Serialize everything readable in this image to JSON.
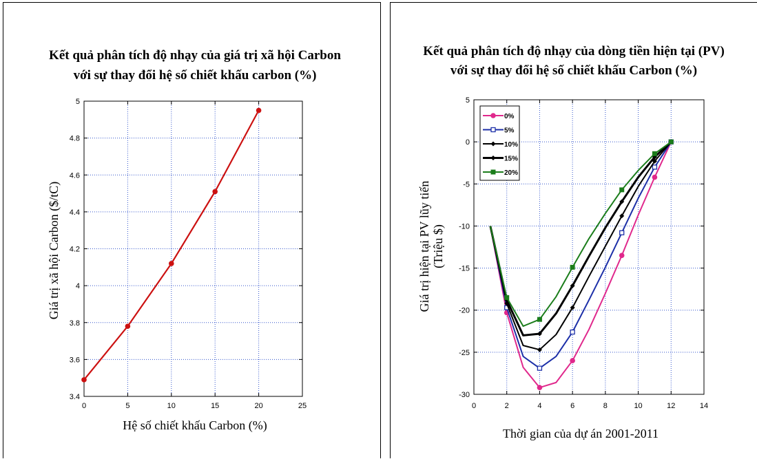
{
  "chart_data": [
    {
      "type": "line",
      "title": [
        "Kết quả phân tích độ nhạy của giá trị xã hội Carbon",
        "với sự thay đổi hệ số chiết khấu carbon (%)"
      ],
      "xlabel": "Hệ số chiết khấu Carbon (%)",
      "ylabel": "Giá trị xã hội Carbon   ($/tC)",
      "xlim": [
        0,
        25
      ],
      "ylim": [
        3.4,
        5
      ],
      "xticks": [
        0,
        5,
        10,
        15,
        20,
        25
      ],
      "yticks": [
        3.4,
        3.6,
        3.8,
        4,
        4.2,
        4.4,
        4.6,
        4.8,
        5
      ],
      "grid": true,
      "series": [
        {
          "color": "#cc1111",
          "marker": "circle",
          "x": [
            0,
            5,
            10,
            15,
            20
          ],
          "y": [
            3.49,
            3.78,
            4.12,
            4.51,
            4.95
          ]
        }
      ]
    },
    {
      "type": "line",
      "title": [
        "Kết quả phân tích độ nhạy của dòng tiền hiện tại  (PV)",
        "với sự thay đổi hệ số chiết khấu Carbon (%)"
      ],
      "xlabel": "Thời gian của dự án 2001-2011",
      "ylabel": [
        "Giá trị hiện tại PV lũy tiến",
        "(Triệu $)"
      ],
      "xlim": [
        0,
        14
      ],
      "ylim": [
        -30,
        5
      ],
      "xticks": [
        0,
        2,
        4,
        6,
        8,
        10,
        12,
        14
      ],
      "yticks": [
        -30,
        -25,
        -20,
        -15,
        -10,
        -5,
        0,
        5
      ],
      "grid": true,
      "legend_position": "top-left",
      "series": [
        {
          "name": "0%",
          "color": "#e0288c",
          "marker": "circle",
          "x": [
            1,
            2,
            3,
            4,
            5,
            6,
            7,
            8,
            9,
            10,
            11,
            12
          ],
          "y": [
            -10,
            -20.3,
            -26.8,
            -29.2,
            -28.6,
            -26,
            -22.3,
            -18,
            -13.5,
            -8.7,
            -4.2,
            0
          ],
          "marked": [
            false,
            true,
            false,
            true,
            false,
            true,
            false,
            false,
            true,
            false,
            true,
            true
          ]
        },
        {
          "name": "5%",
          "color": "#1c2fa8",
          "marker": "square-open",
          "x": [
            1,
            2,
            3,
            4,
            5,
            6,
            7,
            8,
            9,
            10,
            11,
            12
          ],
          "y": [
            -10,
            -19.7,
            -25.5,
            -26.9,
            -25.5,
            -22.6,
            -18.8,
            -14.9,
            -10.8,
            -6.7,
            -3,
            0
          ],
          "marked": [
            false,
            true,
            false,
            true,
            false,
            true,
            false,
            false,
            true,
            false,
            true,
            true
          ]
        },
        {
          "name": "10%",
          "color": "#000000",
          "marker": "diamond",
          "x": [
            1,
            2,
            3,
            4,
            5,
            6,
            7,
            8,
            9,
            10,
            11,
            12
          ],
          "y": [
            -10,
            -19.2,
            -24.2,
            -24.7,
            -22.9,
            -19.7,
            -16,
            -12.4,
            -8.8,
            -5.3,
            -2.3,
            0
          ],
          "marked": [
            false,
            true,
            false,
            true,
            false,
            true,
            false,
            false,
            true,
            false,
            true,
            true
          ]
        },
        {
          "name": "15%",
          "color": "#000000",
          "marker": "diamond",
          "x": [
            1,
            2,
            3,
            4,
            5,
            6,
            7,
            8,
            9,
            10,
            11,
            12
          ],
          "y": [
            -10,
            -18.8,
            -23,
            -22.8,
            -20.4,
            -17.1,
            -13.6,
            -10.2,
            -7.1,
            -4.2,
            -1.8,
            0
          ],
          "marked": [
            false,
            true,
            false,
            true,
            false,
            true,
            false,
            false,
            true,
            false,
            true,
            true
          ]
        },
        {
          "name": "20%",
          "color": "#1b7d1b",
          "marker": "square",
          "x": [
            1,
            2,
            3,
            4,
            5,
            6,
            7,
            8,
            9,
            10,
            11,
            12
          ],
          "y": [
            -10,
            -18.5,
            -21.9,
            -21.1,
            -18.4,
            -14.9,
            -11.5,
            -8.5,
            -5.7,
            -3.4,
            -1.4,
            0
          ],
          "marked": [
            false,
            true,
            false,
            true,
            false,
            true,
            false,
            false,
            true,
            false,
            true,
            true
          ]
        }
      ]
    }
  ]
}
